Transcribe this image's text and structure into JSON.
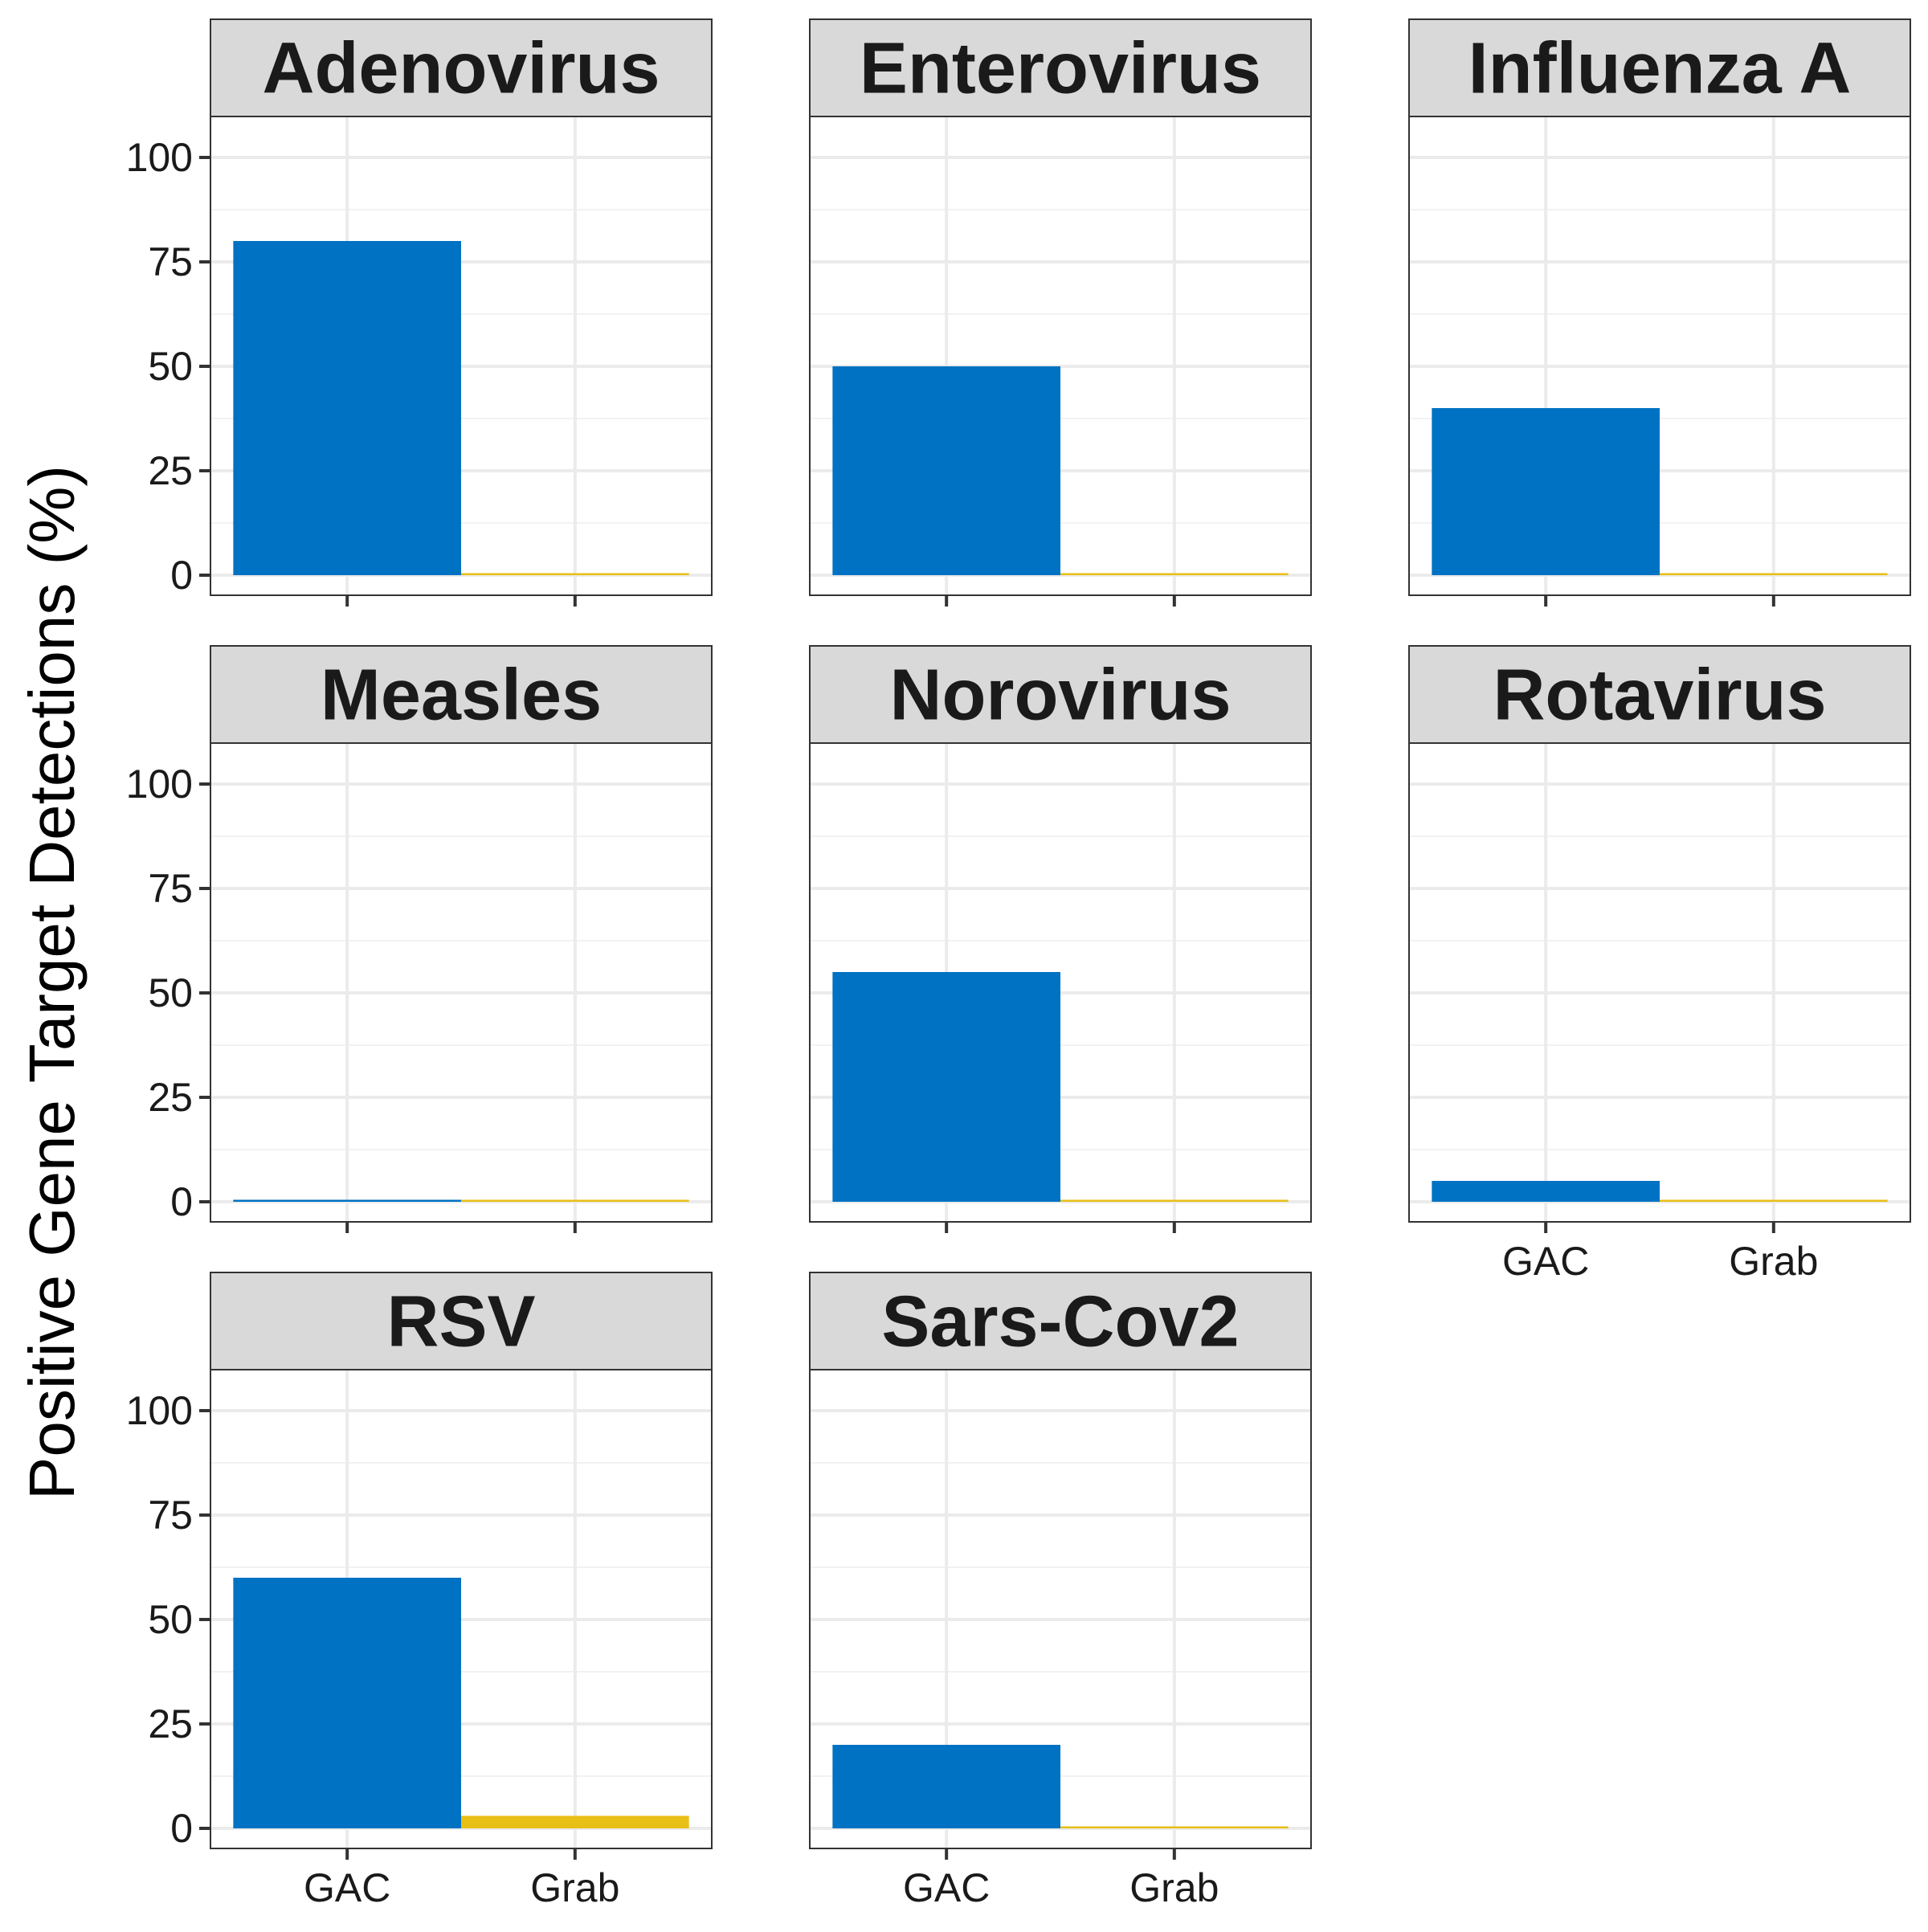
{
  "chart_data": {
    "type": "bar",
    "layout": "facet-grid",
    "ylabel": "Positive Gene Target Detections (%)",
    "xlabel": "",
    "ylim": [
      0,
      105
    ],
    "yticks": [
      0,
      25,
      50,
      75,
      100
    ],
    "categories": [
      "GAC",
      "Grab"
    ],
    "colors": {
      "GAC": "#0072c3",
      "Grab": "#e8bf14"
    },
    "grid": true,
    "legend": "none",
    "panels": [
      {
        "title": "Adenovirus",
        "values": [
          80,
          0
        ]
      },
      {
        "title": "Enterovirus",
        "values": [
          50,
          0
        ]
      },
      {
        "title": "Influenza A",
        "values": [
          40,
          0
        ]
      },
      {
        "title": "Measles",
        "values": [
          0,
          0
        ]
      },
      {
        "title": "Norovirus",
        "values": [
          55,
          0
        ]
      },
      {
        "title": "Rotavirus",
        "values": [
          5,
          0
        ]
      },
      {
        "title": "RSV",
        "values": [
          60,
          3
        ]
      },
      {
        "title": "Sars-Cov2",
        "values": [
          20,
          0
        ]
      }
    ]
  }
}
